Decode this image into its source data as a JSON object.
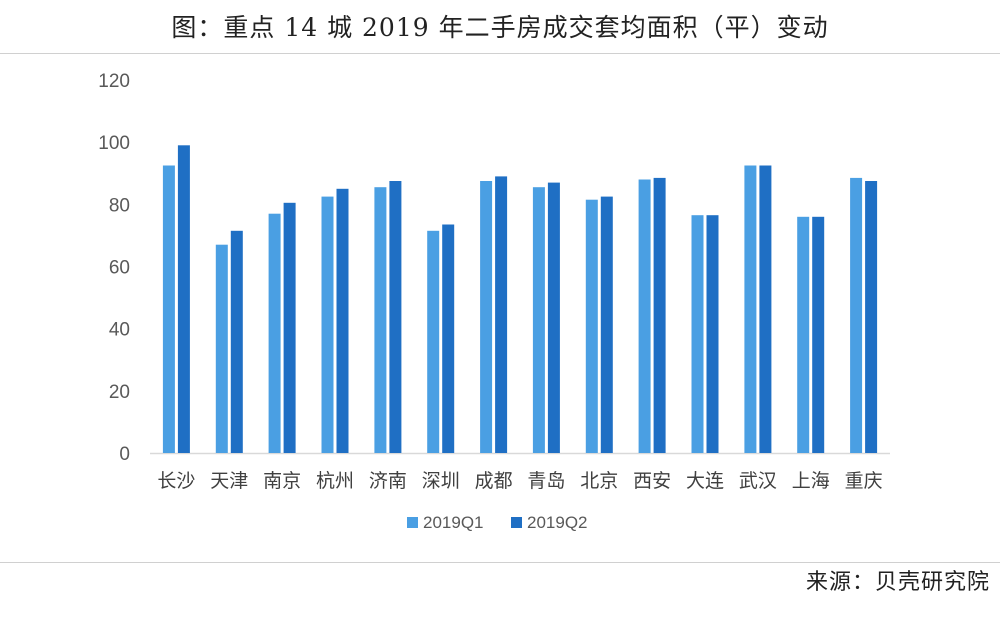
{
  "header": {
    "title": "图：重点 14 城 2019 年二手房成交套均面积（平）变动"
  },
  "footer": {
    "source": "来源：贝壳研究院"
  },
  "colors": {
    "q1": "#4a9fe3",
    "q2": "#1f6fc4",
    "axis": "#d9d9d9",
    "tick_text": "#595959"
  },
  "chart_data": {
    "type": "bar",
    "title": "图：重点 14 城 2019 年二手房成交套均面积（平）变动",
    "xlabel": "",
    "ylabel": "",
    "ylim": [
      0,
      120
    ],
    "yticks": [
      0,
      20,
      40,
      60,
      80,
      100,
      120
    ],
    "grid": false,
    "legend": "bottom-center",
    "categories": [
      "长沙",
      "天津",
      "南京",
      "杭州",
      "济南",
      "深圳",
      "成都",
      "青岛",
      "北京",
      "西安",
      "大连",
      "武汉",
      "上海",
      "重庆"
    ],
    "series": [
      {
        "name": "2019Q1",
        "values": [
          92.5,
          67,
          77,
          82.5,
          85.5,
          71.5,
          87.5,
          85.5,
          81.5,
          88,
          76.5,
          92.5,
          76,
          88.5
        ]
      },
      {
        "name": "2019Q2",
        "values": [
          99,
          71.5,
          80.5,
          85,
          87.5,
          73.5,
          89,
          87,
          82.5,
          88.5,
          76.5,
          92.5,
          76,
          87.5
        ]
      }
    ]
  }
}
